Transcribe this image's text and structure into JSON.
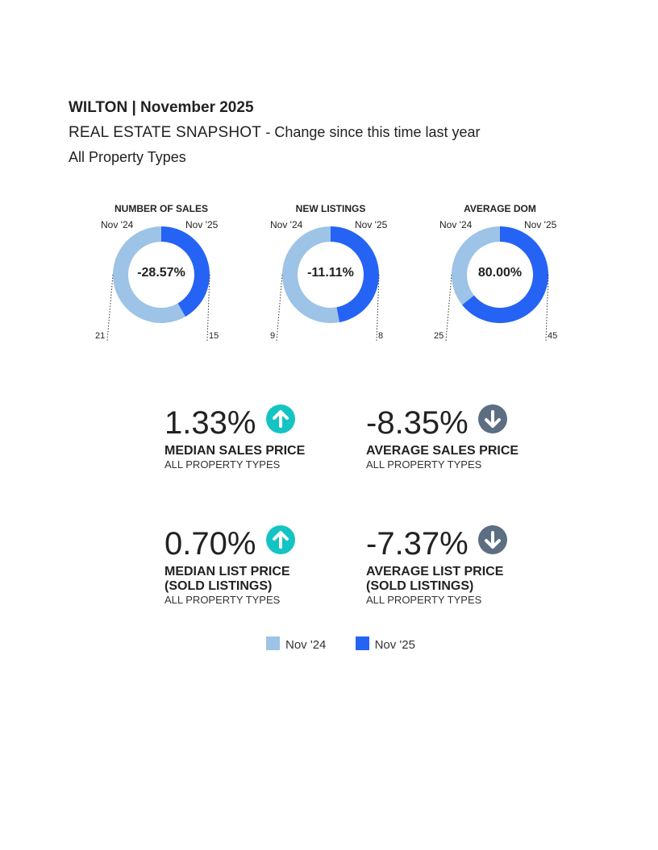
{
  "header": {
    "title": "WILTON | November 2025",
    "subtitle_main": "REAL ESTATE SNAPSHOT",
    "subtitle_change": "- Change since this time last year",
    "property_types": "All Property Types"
  },
  "colors": {
    "prior": "#9DC3E6",
    "current": "#2563F5",
    "up": "#14C4C4",
    "down": "#5B6E82"
  },
  "chart_data": [
    {
      "type": "pie",
      "title": "NUMBER OF SALES",
      "labels": [
        "Nov '24",
        "Nov '25"
      ],
      "values": [
        21,
        15
      ],
      "center": "-28.57%"
    },
    {
      "type": "pie",
      "title": "NEW LISTINGS",
      "labels": [
        "Nov '24",
        "Nov '25"
      ],
      "values": [
        9,
        8
      ],
      "center": "-11.11%"
    },
    {
      "type": "pie",
      "title": "AVERAGE DOM",
      "labels": [
        "Nov '24",
        "Nov '25"
      ],
      "values": [
        25,
        45
      ],
      "center": "80.00%"
    }
  ],
  "metrics": [
    {
      "value": "1.33%",
      "direction": "up",
      "icon": "arrow-up-circle-icon",
      "label1": "MEDIAN SALES PRICE",
      "label2": "",
      "sub": "ALL PROPERTY TYPES"
    },
    {
      "value": "-8.35%",
      "direction": "down",
      "icon": "arrow-down-circle-icon",
      "label1": "AVERAGE SALES PRICE",
      "label2": "",
      "sub": "ALL PROPERTY TYPES"
    },
    {
      "value": "0.70%",
      "direction": "up",
      "icon": "arrow-up-circle-icon",
      "label1": "MEDIAN LIST PRICE",
      "label2": "(SOLD LISTINGS)",
      "sub": "ALL PROPERTY TYPES"
    },
    {
      "value": "-7.37%",
      "direction": "down",
      "icon": "arrow-down-circle-icon",
      "label1": "AVERAGE LIST PRICE",
      "label2": "(SOLD LISTINGS)",
      "sub": "ALL PROPERTY TYPES"
    }
  ],
  "legend": [
    "Nov '24",
    "Nov '25"
  ]
}
